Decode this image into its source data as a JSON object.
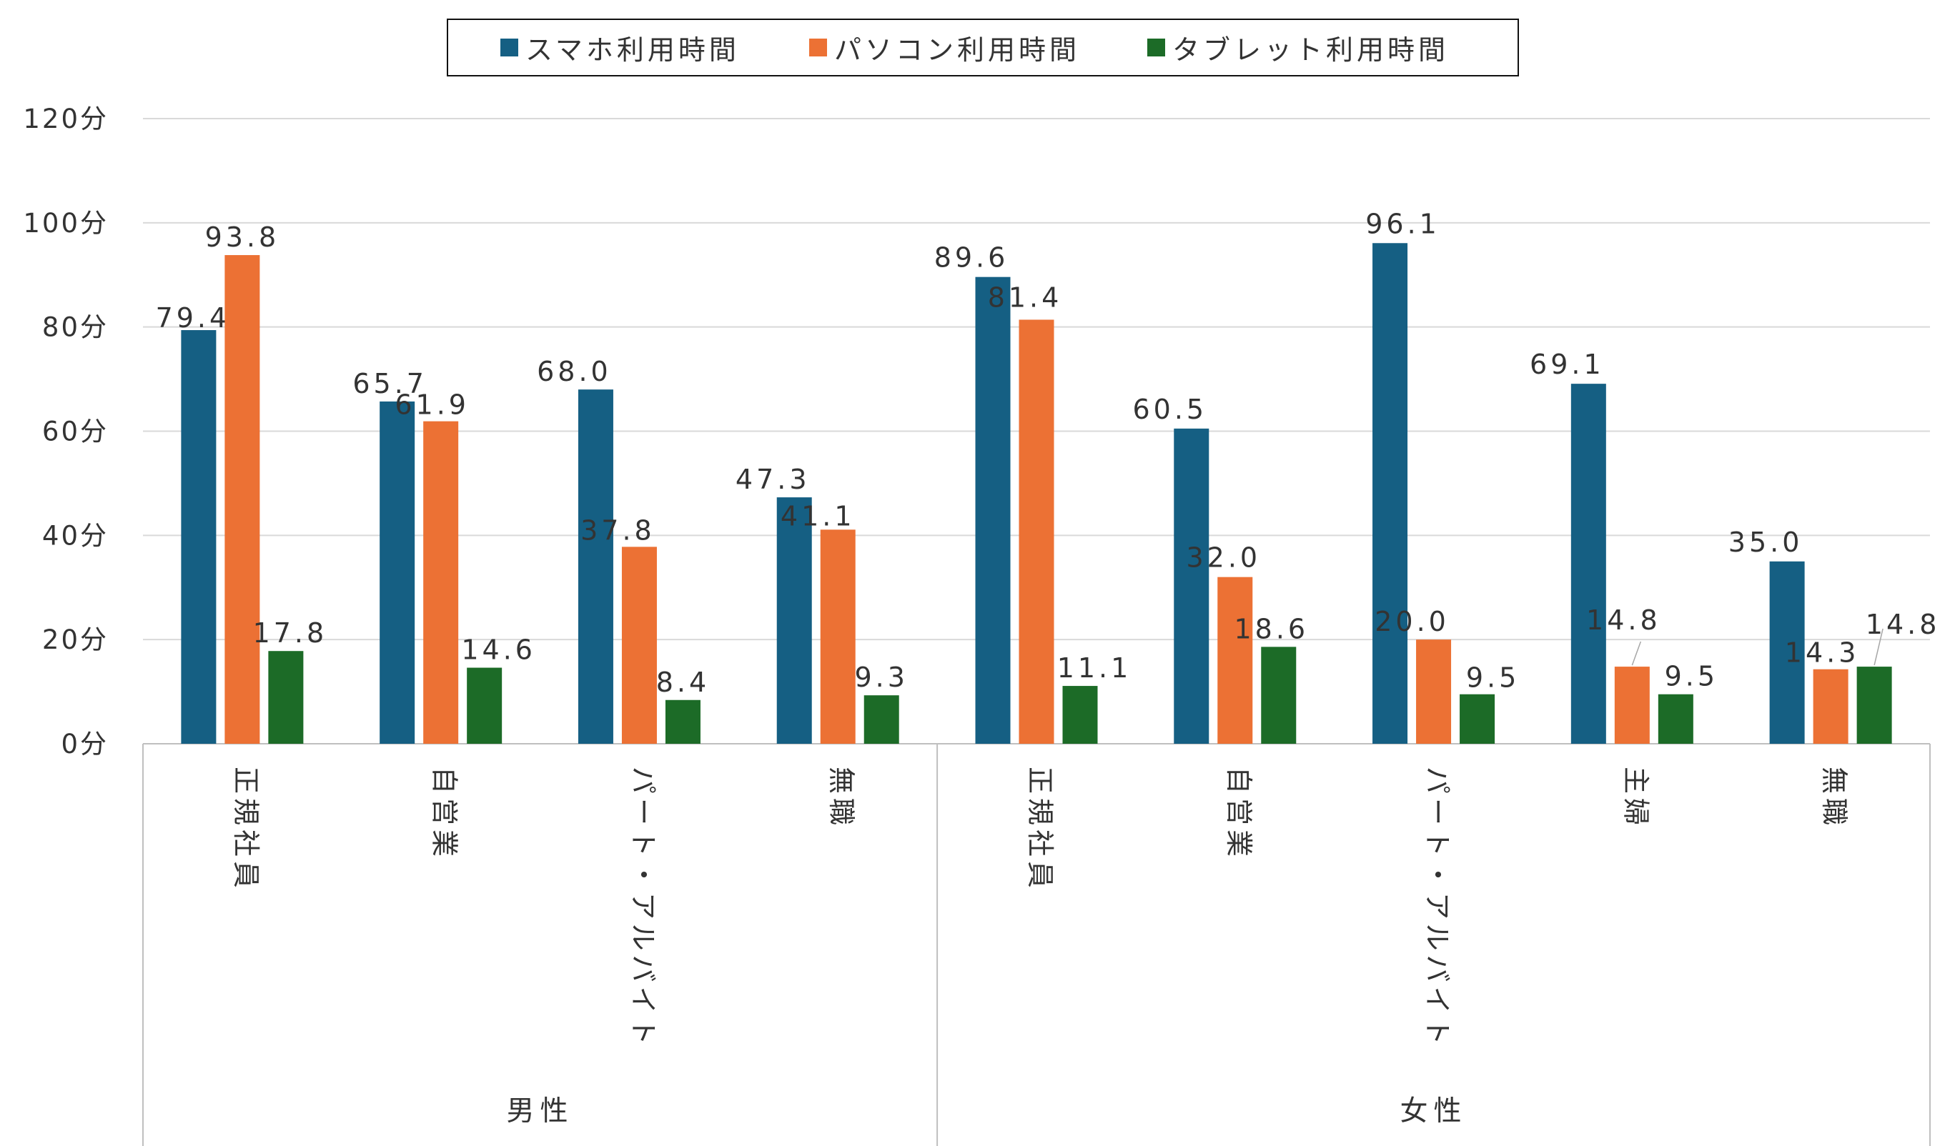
{
  "chart_data": {
    "type": "bar",
    "yunit": "分",
    "ylim": [
      0,
      120
    ],
    "yticks": [
      0,
      20,
      40,
      60,
      80,
      100,
      120
    ],
    "grid": true,
    "legend_position": "top-center",
    "groups": [
      {
        "name": "男性",
        "categories": [
          "正規社員",
          "自営業",
          "パート・アルバイト",
          "無職"
        ]
      },
      {
        "name": "女性",
        "categories": [
          "正規社員",
          "自営業",
          "パート・アルバイト",
          "主婦",
          "無職"
        ]
      }
    ],
    "series": [
      {
        "name": "スマホ利用時間",
        "color": "#155F83",
        "values": [
          79.4,
          65.7,
          68.0,
          47.3,
          89.6,
          60.5,
          96.1,
          69.1,
          35.0
        ]
      },
      {
        "name": "パソコン利用時間",
        "color": "#EC7134",
        "values": [
          93.8,
          61.9,
          37.8,
          41.1,
          81.4,
          32.0,
          20.0,
          14.8,
          14.3
        ]
      },
      {
        "name": "タブレット利用時間",
        "color": "#1C6B27",
        "values": [
          17.8,
          14.6,
          8.4,
          9.3,
          11.1,
          18.6,
          9.5,
          9.5,
          14.8
        ]
      }
    ]
  }
}
